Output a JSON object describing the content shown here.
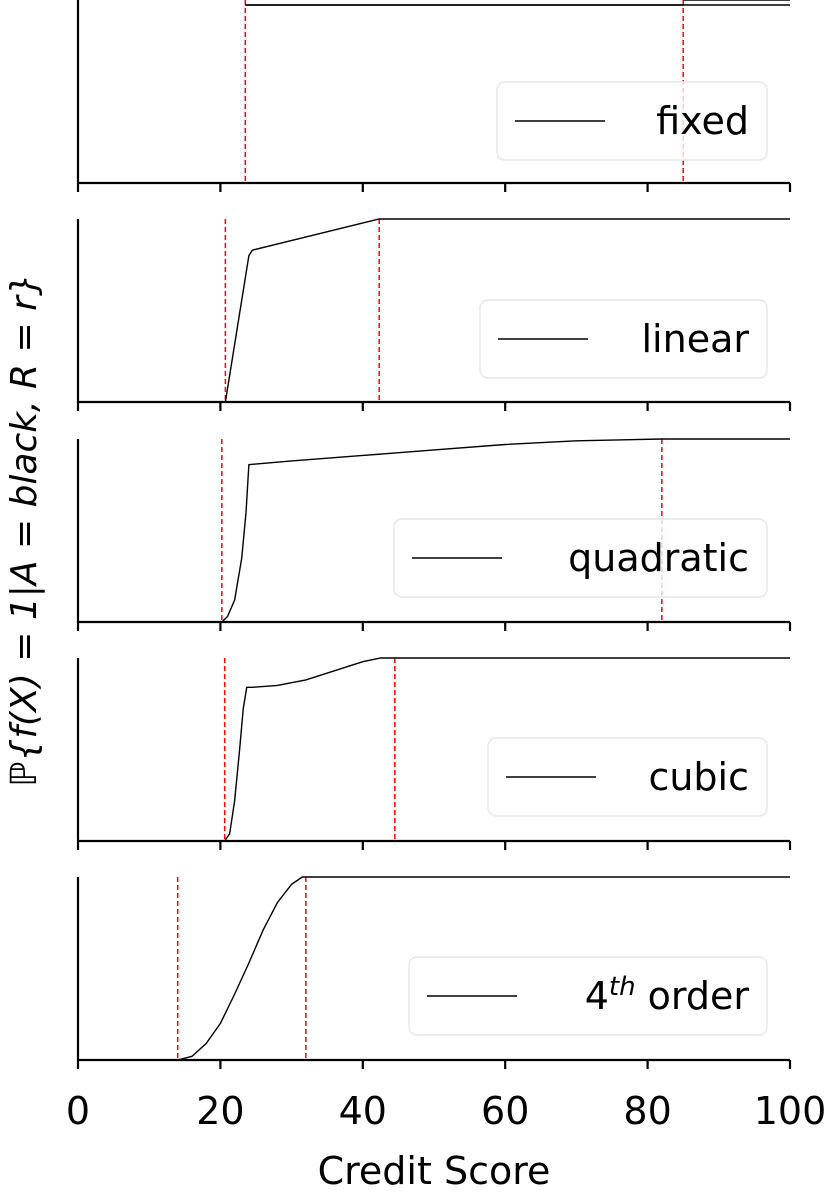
{
  "chart_data": {
    "type": "line",
    "xlabel": "Credit Score",
    "ylabel": "ℙ{f(X) = 1|A = black, R = r}",
    "xlim": [
      0,
      100
    ],
    "xticks": [
      "0",
      "20",
      "40",
      "60",
      "80",
      "100"
    ],
    "grid": false,
    "legend_placement": "lower-right",
    "colors": {
      "curve": "#000000",
      "threshold": "#ff0000"
    },
    "panels": [
      {
        "legend": "fixed",
        "points": [
          [
            23.5,
            1.0
          ],
          [
            85.0,
            1.0
          ],
          [
            100,
            1.0
          ]
        ],
        "thresholds": [
          23.5,
          85.0
        ],
        "top_clipped": true
      },
      {
        "legend": "linear",
        "points": [
          [
            20.7,
            0.0
          ],
          [
            24.0,
            0.8
          ],
          [
            24.5,
            0.83
          ],
          [
            42.3,
            1.0
          ],
          [
            100,
            1.0
          ]
        ],
        "thresholds": [
          20.7,
          42.3
        ]
      },
      {
        "legend": "quadratic",
        "points": [
          [
            20.2,
            0.0
          ],
          [
            21.0,
            0.03
          ],
          [
            22.0,
            0.12
          ],
          [
            23.0,
            0.35
          ],
          [
            23.6,
            0.6
          ],
          [
            24.0,
            0.86
          ],
          [
            30,
            0.88
          ],
          [
            40,
            0.91
          ],
          [
            50,
            0.94
          ],
          [
            60,
            0.97
          ],
          [
            70,
            0.99
          ],
          [
            82.0,
            1.0
          ],
          [
            100,
            1.0
          ]
        ],
        "thresholds": [
          20.2,
          82.0
        ]
      },
      {
        "legend": "cubic",
        "points": [
          [
            20.6,
            0.0
          ],
          [
            21.3,
            0.04
          ],
          [
            22.0,
            0.22
          ],
          [
            22.7,
            0.5
          ],
          [
            23.2,
            0.72
          ],
          [
            23.7,
            0.84
          ],
          [
            24.5,
            0.84
          ],
          [
            28,
            0.85
          ],
          [
            32,
            0.88
          ],
          [
            36,
            0.93
          ],
          [
            40,
            0.98
          ],
          [
            42.5,
            1.0
          ],
          [
            100,
            1.0
          ]
        ],
        "thresholds": [
          20.6,
          44.5
        ]
      },
      {
        "legend": "4th order",
        "legend_base": "4",
        "legend_sup": "th",
        "legend_rest": " order",
        "points": [
          [
            14.0,
            0.0
          ],
          [
            16,
            0.02
          ],
          [
            18,
            0.09
          ],
          [
            20,
            0.2
          ],
          [
            22,
            0.36
          ],
          [
            24,
            0.53
          ],
          [
            26,
            0.71
          ],
          [
            28,
            0.86
          ],
          [
            30,
            0.96
          ],
          [
            31.5,
            1.0
          ],
          [
            100,
            1.0
          ]
        ],
        "thresholds": [
          14.0,
          32.0
        ]
      }
    ]
  }
}
